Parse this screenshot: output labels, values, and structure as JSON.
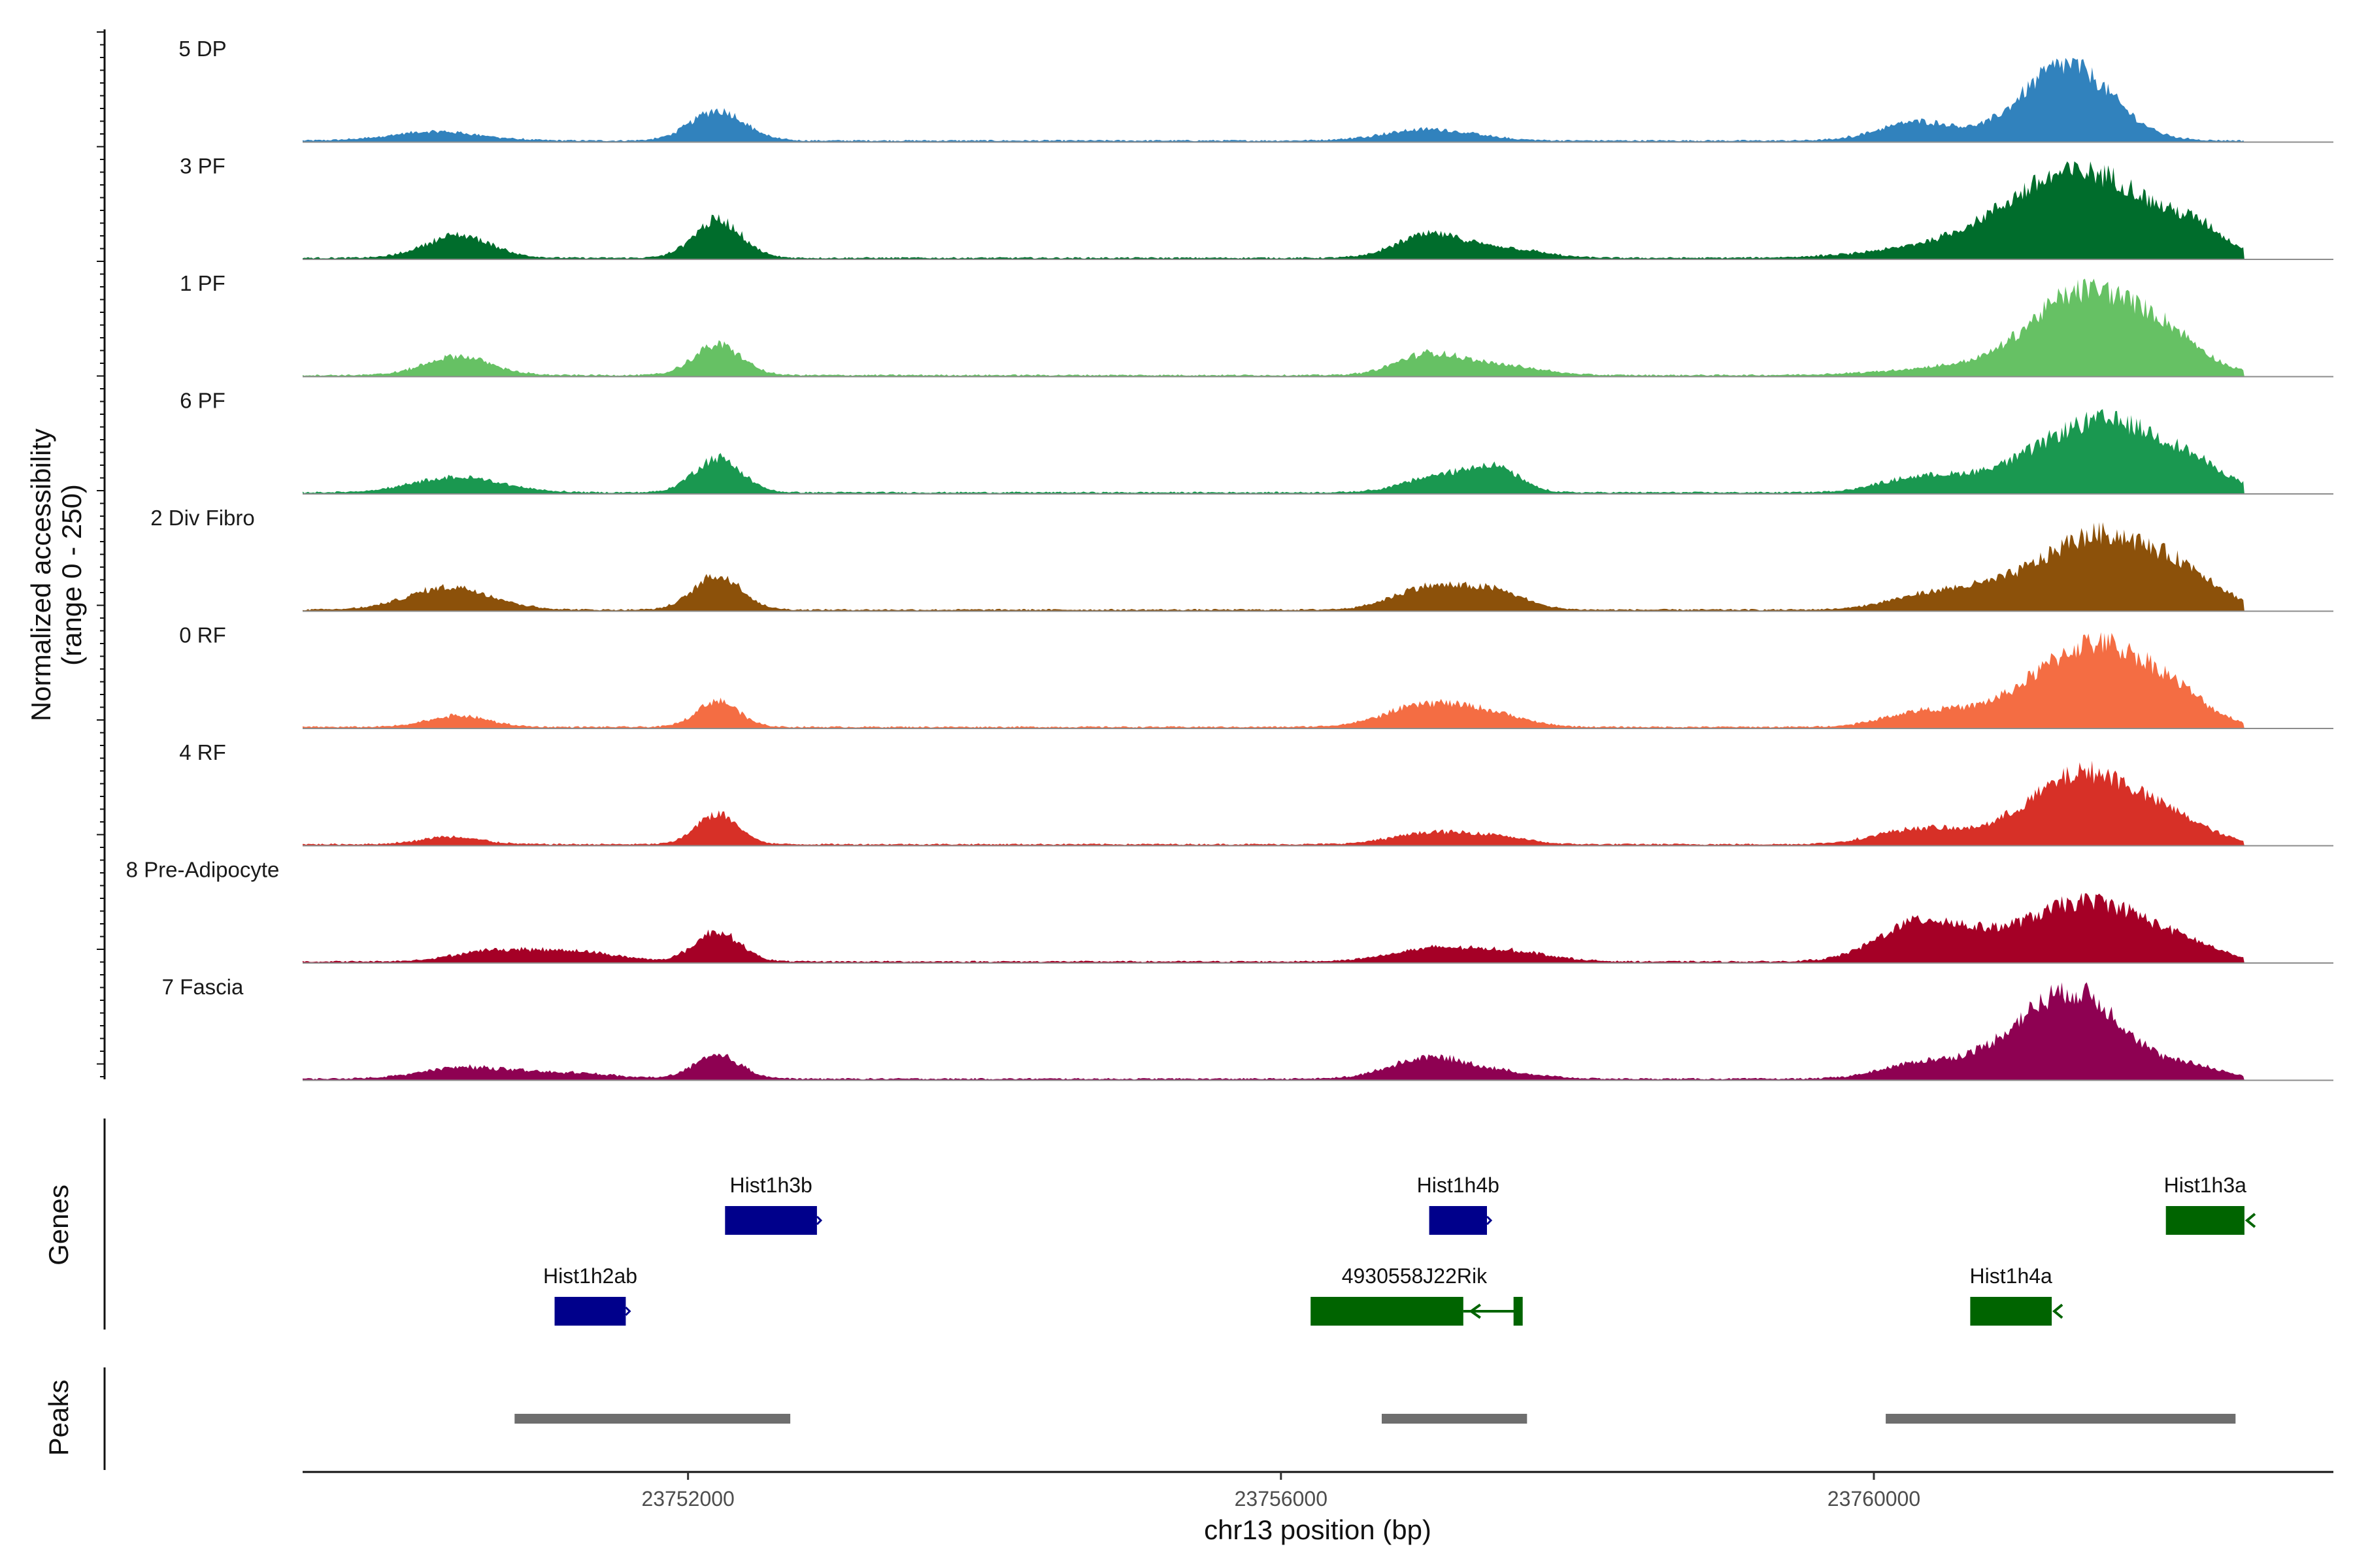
{
  "chart_data": {
    "type": "area",
    "title": "",
    "xlabel": "chr13 position (bp)",
    "ylabel_line1": "Normalized accessibility",
    "ylabel_line2": "(range 0 - 250)",
    "xlim": [
      23749400,
      23763100
    ],
    "ylim": [
      0,
      250
    ],
    "x_ticks": [
      {
        "value": 23752000,
        "label": "23752000"
      },
      {
        "value": 23756000,
        "label": "23756000"
      },
      {
        "value": 23760000,
        "label": "23760000"
      }
    ],
    "track_x_range": [
      23749400,
      23762500
    ],
    "tracks": [
      {
        "name": "5 DP",
        "color": "#3182bd",
        "peaks": [
          [
            23750300,
            300,
            24
          ],
          [
            23752200,
            180,
            80
          ],
          [
            23757000,
            300,
            30
          ],
          [
            23760300,
            260,
            50
          ],
          [
            23761300,
            300,
            200
          ]
        ]
      },
      {
        "name": "3 PF",
        "color": "#006d2c",
        "peaks": [
          [
            23750450,
            220,
            60
          ],
          [
            23752200,
            160,
            100
          ],
          [
            23757000,
            220,
            60
          ],
          [
            23757500,
            250,
            25
          ],
          [
            23760600,
            500,
            35
          ],
          [
            23761050,
            350,
            40
          ],
          [
            23761500,
            450,
            200
          ],
          [
            23762200,
            160,
            40
          ]
        ]
      },
      {
        "name": "1 PF",
        "color": "#66c164",
        "peaks": [
          [
            23750450,
            220,
            50
          ],
          [
            23752200,
            160,
            80
          ],
          [
            23757000,
            220,
            55
          ],
          [
            23757500,
            250,
            25
          ],
          [
            23760700,
            500,
            25
          ],
          [
            23761200,
            250,
            40
          ],
          [
            23761550,
            380,
            200
          ],
          [
            23762050,
            200,
            35
          ]
        ]
      },
      {
        "name": "6 PF",
        "color": "#1a9850",
        "peaks": [
          [
            23750450,
            300,
            40
          ],
          [
            23752200,
            160,
            90
          ],
          [
            23757100,
            250,
            45
          ],
          [
            23757450,
            160,
            55
          ],
          [
            23760250,
            250,
            30
          ],
          [
            23760650,
            300,
            20
          ],
          [
            23761550,
            450,
            190
          ],
          [
            23762150,
            200,
            25
          ]
        ]
      },
      {
        "name": "2 Div Fibro",
        "color": "#8c510a",
        "peaks": [
          [
            23750400,
            280,
            60
          ],
          [
            23752200,
            160,
            90
          ],
          [
            23757000,
            240,
            60
          ],
          [
            23757450,
            200,
            45
          ],
          [
            23760300,
            260,
            25
          ],
          [
            23760700,
            300,
            35
          ],
          [
            23761550,
            420,
            200
          ],
          [
            23762150,
            200,
            40
          ]
        ]
      },
      {
        "name": "0 RF",
        "color": "#f46d43",
        "peaks": [
          [
            23750450,
            200,
            30
          ],
          [
            23752200,
            140,
            70
          ],
          [
            23757000,
            280,
            60
          ],
          [
            23757450,
            220,
            25
          ],
          [
            23760300,
            250,
            35
          ],
          [
            23760750,
            300,
            20
          ],
          [
            23761500,
            400,
            220
          ],
          [
            23762050,
            200,
            35
          ]
        ]
      },
      {
        "name": "4 RF",
        "color": "#d73027",
        "peaks": [
          [
            23750400,
            200,
            20
          ],
          [
            23752200,
            140,
            80
          ],
          [
            23757000,
            250,
            30
          ],
          [
            23757450,
            200,
            20
          ],
          [
            23760300,
            280,
            40
          ],
          [
            23761450,
            400,
            190
          ],
          [
            23762100,
            200,
            25
          ]
        ]
      },
      {
        "name": "8 Pre-Adipocyte",
        "color": "#a50026",
        "peaks": [
          [
            23750650,
            250,
            25
          ],
          [
            23751200,
            300,
            28
          ],
          [
            23752200,
            150,
            80
          ],
          [
            23757050,
            300,
            35
          ],
          [
            23757600,
            250,
            22
          ],
          [
            23760300,
            280,
            90
          ],
          [
            23760800,
            400,
            40
          ],
          [
            23761500,
            400,
            150
          ],
          [
            23762150,
            200,
            20
          ]
        ]
      },
      {
        "name": "7 Fascia",
        "color": "#8e0152",
        "peaks": [
          [
            23750500,
            300,
            30
          ],
          [
            23751200,
            300,
            15
          ],
          [
            23752200,
            160,
            60
          ],
          [
            23757000,
            260,
            55
          ],
          [
            23757500,
            250,
            15
          ],
          [
            23760300,
            260,
            35
          ],
          [
            23760850,
            350,
            30
          ],
          [
            23761350,
            350,
            220
          ],
          [
            23762200,
            180,
            25
          ]
        ]
      }
    ],
    "genes_label": "Genes",
    "genes": [
      {
        "name": "Hist1h3b",
        "start": 23752250,
        "end": 23752870,
        "row": 0,
        "color": "#00008b",
        "strand": "+"
      },
      {
        "name": "Hist1h4b",
        "start": 23757000,
        "end": 23757390,
        "row": 0,
        "color": "#00008b",
        "strand": "+"
      },
      {
        "name": "Hist1h3a",
        "start": 23761970,
        "end": 23762500,
        "row": 0,
        "color": "#006400",
        "strand": "-"
      },
      {
        "name": "Hist1h2ab",
        "start": 23751100,
        "end": 23751580,
        "row": 1,
        "color": "#00008b",
        "strand": "+"
      },
      {
        "name": "4930558J22Rik",
        "start": 23756200,
        "end": 23757230,
        "row": 1,
        "color": "#006400",
        "strand": "-",
        "line_end": 23757600
      },
      {
        "name": "Hist1h4a",
        "start": 23760650,
        "end": 23761200,
        "row": 1,
        "color": "#006400",
        "strand": "-"
      }
    ],
    "peaks_label": "Peaks",
    "peak_regions": [
      [
        23750830,
        23752690
      ],
      [
        23756680,
        23757660
      ],
      [
        23760080,
        23762440
      ]
    ]
  }
}
